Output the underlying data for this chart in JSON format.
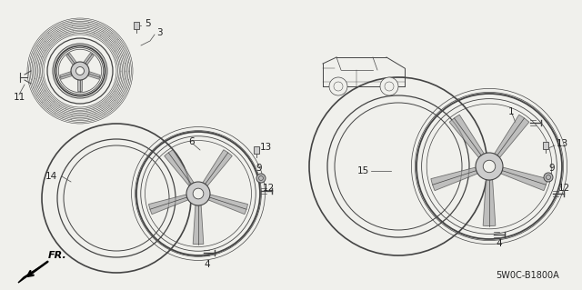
{
  "bg_color": "#f0f0ec",
  "line_color": "#444444",
  "text_color": "#222222",
  "diagram_code": "5W0C-B1800A",
  "fig_w": 6.4,
  "fig_h": 3.19,
  "dpi": 100
}
